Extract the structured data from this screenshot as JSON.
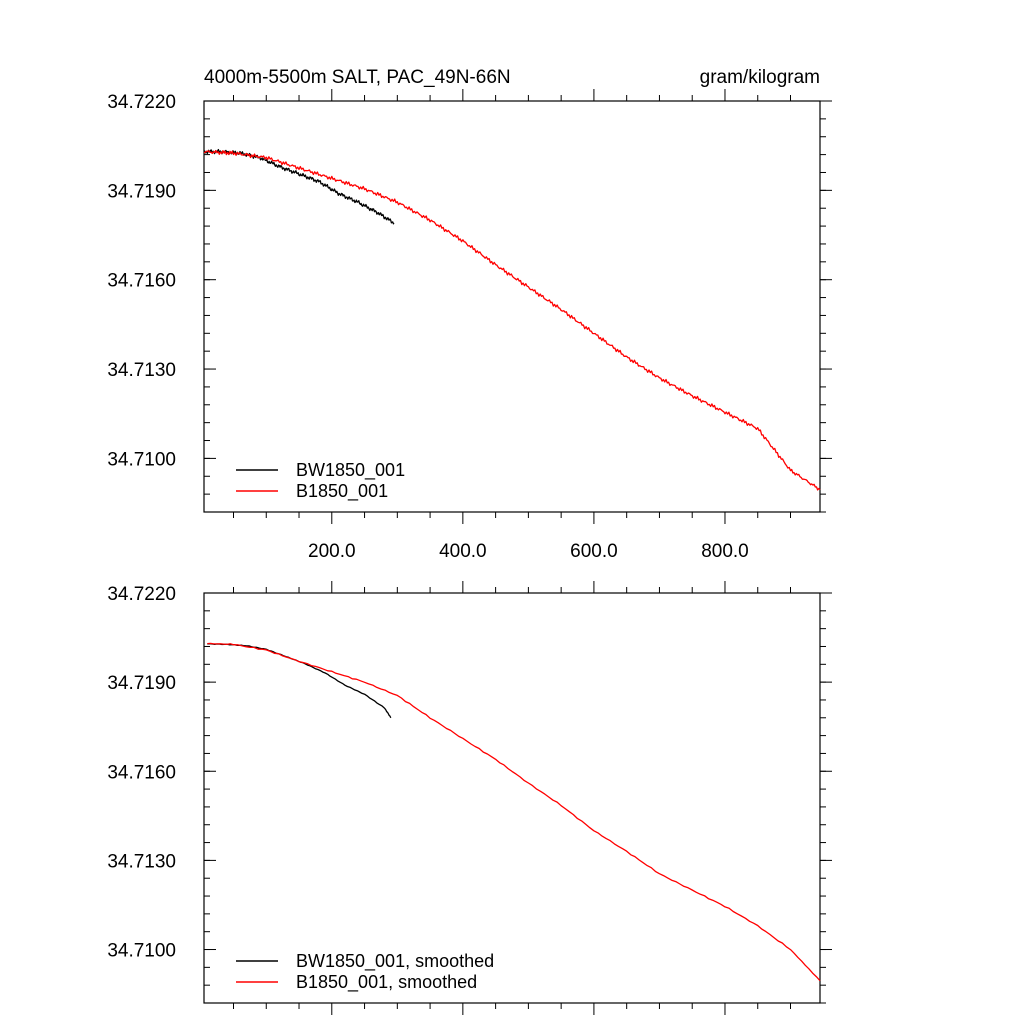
{
  "figure": {
    "title_left": "4000m-5500m SALT, PAC_49N-66N",
    "title_right": "gram/kilogram"
  },
  "colors": {
    "BW1850_001": "#000000",
    "B1850_001": "#ff0000"
  },
  "chart_data": [
    {
      "type": "line",
      "xlim": [
        5,
        945
      ],
      "ylim": [
        34.7082,
        34.722
      ],
      "yticks": [
        34.722,
        34.719,
        34.716,
        34.713,
        34.71
      ],
      "ytick_labels": [
        "34.7220",
        "34.7190",
        "34.7160",
        "34.7130",
        "34.7100"
      ],
      "xticks": [
        200,
        400,
        600,
        800
      ],
      "xtick_labels": [
        "200.0",
        "400.0",
        "600.0",
        "800.0"
      ],
      "legend": "bottom-left",
      "smoothed": false,
      "series": [
        {
          "name": "BW1850_001",
          "x": [
            5,
            30,
            60,
            90,
            120,
            150,
            180,
            210,
            240,
            270,
            295
          ],
          "y": [
            34.7203,
            34.7203,
            34.72025,
            34.7201,
            34.7198,
            34.71955,
            34.7193,
            34.7189,
            34.7186,
            34.71825,
            34.7179
          ]
        },
        {
          "name": "B1850_001",
          "x": [
            5,
            50,
            100,
            150,
            200,
            250,
            300,
            350,
            400,
            450,
            500,
            550,
            600,
            650,
            700,
            750,
            800,
            850,
            900,
            945
          ],
          "y": [
            34.7203,
            34.72025,
            34.7201,
            34.71975,
            34.7194,
            34.71905,
            34.7186,
            34.718,
            34.7173,
            34.7165,
            34.71575,
            34.715,
            34.7142,
            34.7134,
            34.7127,
            34.7121,
            34.71155,
            34.711,
            34.7096,
            34.70895
          ]
        }
      ]
    },
    {
      "type": "line",
      "xlim": [
        5,
        945
      ],
      "ylim": [
        34.7082,
        34.722
      ],
      "yticks": [
        34.722,
        34.719,
        34.716,
        34.713,
        34.71
      ],
      "ytick_labels": [
        "34.7220",
        "34.7190",
        "34.7160",
        "34.7130",
        "34.7100"
      ],
      "xticks": [
        200,
        400,
        600,
        800
      ],
      "xtick_labels": [],
      "legend": "bottom-left",
      "smoothed": true,
      "series": [
        {
          "name": "BW1850_001, smoothed",
          "x": [
            10,
            40,
            70,
            100,
            130,
            160,
            190,
            220,
            250,
            280,
            290
          ],
          "y": [
            34.7203,
            34.72028,
            34.72023,
            34.7201,
            34.71985,
            34.7196,
            34.7193,
            34.7189,
            34.7186,
            34.71815,
            34.7178
          ]
        },
        {
          "name": "B1850_001, smoothed",
          "x": [
            10,
            50,
            100,
            150,
            200,
            250,
            300,
            350,
            400,
            450,
            500,
            550,
            600,
            650,
            700,
            750,
            800,
            850,
            900,
            945
          ],
          "y": [
            34.7203,
            34.72027,
            34.72008,
            34.7197,
            34.71935,
            34.719,
            34.71855,
            34.7178,
            34.7171,
            34.7164,
            34.7156,
            34.71485,
            34.714,
            34.7133,
            34.71255,
            34.712,
            34.71145,
            34.7108,
            34.71,
            34.70895
          ]
        }
      ]
    }
  ]
}
